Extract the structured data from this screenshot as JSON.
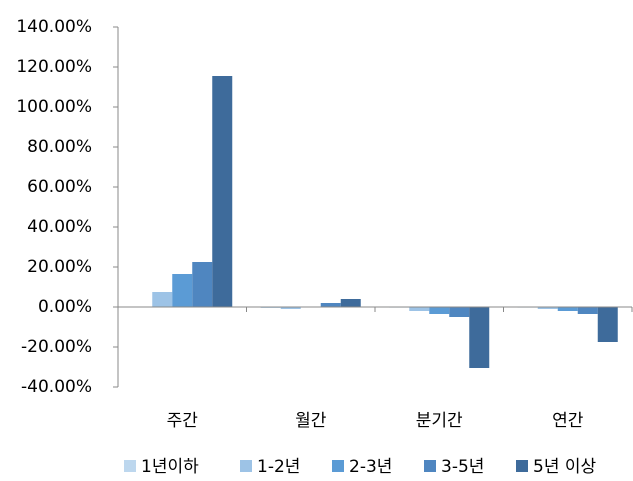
{
  "chart_data": {
    "type": "bar",
    "categories": [
      "주간",
      "월간",
      "분기간",
      "연간"
    ],
    "series": [
      {
        "name": "1년이하",
        "color": "#bdd7ee",
        "values": [
          0.2,
          -0.5,
          -0.3,
          -0.3
        ]
      },
      {
        "name": "1-2년",
        "color": "#9dc3e6",
        "values": [
          7.5,
          -1,
          -2,
          -1
        ]
      },
      {
        "name": "2-3년",
        "color": "#5b9bd5",
        "values": [
          16.5,
          0,
          -3.5,
          -2
        ]
      },
      {
        "name": "3-5년",
        "color": "#4f86c0",
        "values": [
          22.5,
          2,
          -5,
          -3.5
        ]
      },
      {
        "name": "5년 이상",
        "color": "#3e6b9b",
        "values": [
          115.5,
          4,
          -30.5,
          -17.5
        ]
      }
    ],
    "ylim": [
      -40,
      140
    ],
    "yticks": [
      {
        "value": -40,
        "label": "-40.00%"
      },
      {
        "value": -20,
        "label": "-20.00%"
      },
      {
        "value": 0,
        "label": "0.00%"
      },
      {
        "value": 20,
        "label": "20.00%"
      },
      {
        "value": 40,
        "label": "40.00%"
      },
      {
        "value": 60,
        "label": "60.00%"
      },
      {
        "value": 80,
        "label": "80.00%"
      },
      {
        "value": 100,
        "label": "100.00%"
      },
      {
        "value": 120,
        "label": "120.00%"
      },
      {
        "value": 140,
        "label": "140.00%"
      }
    ],
    "grid": false,
    "legend": "bottom"
  }
}
